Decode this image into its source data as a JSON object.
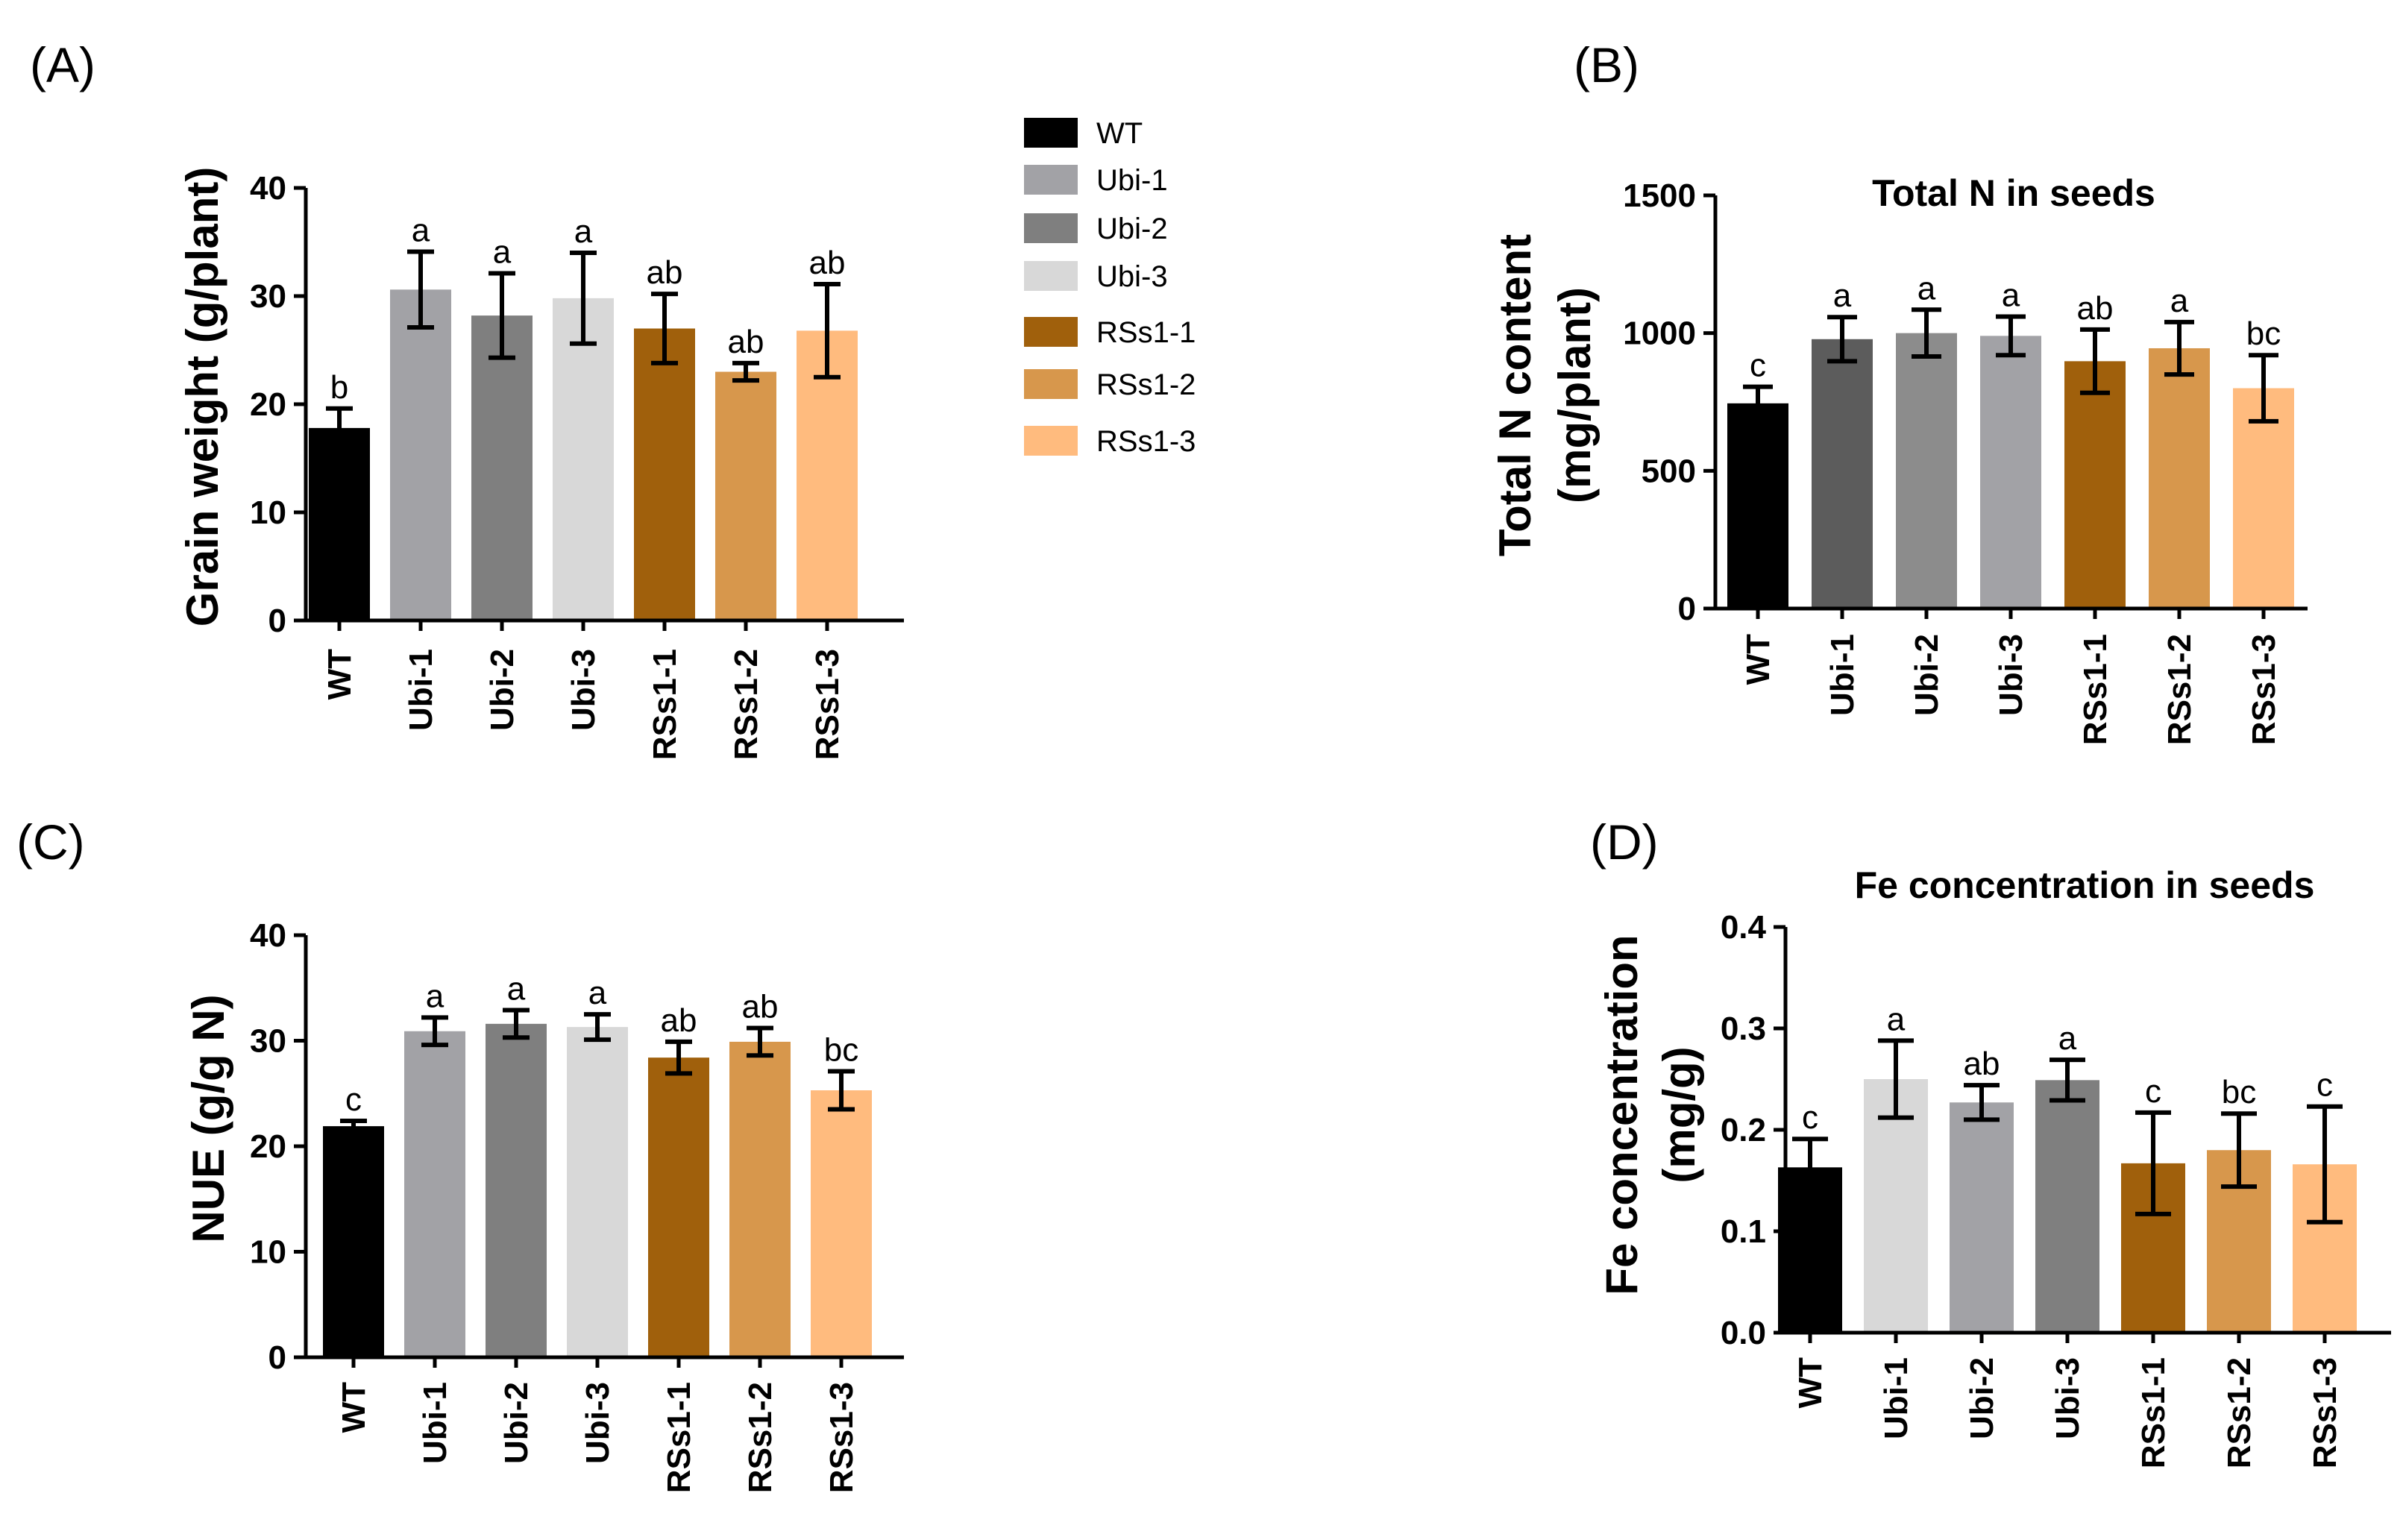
{
  "colors": {
    "WT": "#000000",
    "Ubi-1": "#a2a2a6",
    "Ubi-2": "#7f7f7f",
    "Ubi-3": "#d8d8d8",
    "RSs1-1": "#a0600c",
    "RSs1-2": "#d7974c",
    "RSs1-3": "#ffbb7e",
    "Ubi-dark": "#5c5c5c",
    "Ubi-mid": "#8c8c8c"
  },
  "legend": {
    "items": [
      {
        "label": "WT",
        "color": "#000000"
      },
      {
        "label": "Ubi-1",
        "color": "#a2a2a6"
      },
      {
        "label": "Ubi-2",
        "color": "#7f7f7f"
      },
      {
        "label": "Ubi-3",
        "color": "#d8d8d8"
      },
      {
        "label": "RSs1-1",
        "color": "#a0600c"
      },
      {
        "label": "RSs1-2",
        "color": "#d7974c"
      },
      {
        "label": "RSs1-3",
        "color": "#ffbb7e"
      }
    ]
  },
  "chart_data": [
    {
      "id": "A",
      "panel_label": "(A)",
      "type": "bar",
      "title": "",
      "xlabel": "",
      "ylabel": "Grain weight (g/plant)",
      "ylim": [
        0,
        40
      ],
      "yticks": [
        "0",
        "10",
        "20",
        "30",
        "40"
      ],
      "categories": [
        "WT",
        "Ubi-1",
        "Ubi-2",
        "Ubi-3",
        "RSs1-1",
        "RSs1-2",
        "RSs1-3"
      ],
      "values": [
        17.8,
        30.6,
        28.2,
        29.8,
        27.0,
        23.0,
        26.8
      ],
      "errors": [
        1.8,
        3.5,
        3.9,
        4.2,
        3.2,
        0.8,
        4.3
      ],
      "significance": [
        "b",
        "a",
        "a",
        "a",
        "ab",
        "ab",
        "ab"
      ],
      "colors": [
        "#000000",
        "#a2a2a6",
        "#7f7f7f",
        "#d8d8d8",
        "#a0600c",
        "#d7974c",
        "#ffbb7e"
      ],
      "legend": "right"
    },
    {
      "id": "B",
      "panel_label": "(B)",
      "type": "bar",
      "title": "Total N in seeds",
      "xlabel": "",
      "ylabel": "Total N content",
      "ylabel2": "(mg/plant)",
      "ylim": [
        0,
        1500
      ],
      "yticks": [
        "0",
        "500",
        "1000",
        "1500"
      ],
      "categories": [
        "WT",
        "Ubi-1",
        "Ubi-2",
        "Ubi-3",
        "RSs1-1",
        "RSs1-2",
        "RSs1-3"
      ],
      "values": [
        745,
        978,
        1000,
        990,
        898,
        945,
        800
      ],
      "errors": [
        60,
        80,
        85,
        70,
        115,
        95,
        120
      ],
      "significance": [
        "c",
        "a",
        "a",
        "a",
        "ab",
        "a",
        "bc"
      ],
      "colors": [
        "#000000",
        "#5c5c5c",
        "#8c8c8c",
        "#a2a2a6",
        "#a0600c",
        "#d7974c",
        "#ffbb7e"
      ]
    },
    {
      "id": "C",
      "panel_label": "(C)",
      "type": "bar",
      "title": "",
      "xlabel": "",
      "ylabel": "NUE (g/g N)",
      "ylim": [
        0,
        40
      ],
      "yticks": [
        "0",
        "10",
        "20",
        "30",
        "40"
      ],
      "categories": [
        "WT",
        "Ubi-1",
        "Ubi-2",
        "Ubi-3",
        "RSs1-1",
        "RSs1-2",
        "RSs1-3"
      ],
      "values": [
        21.9,
        30.9,
        31.6,
        31.3,
        28.4,
        29.9,
        25.3
      ],
      "errors": [
        0.5,
        1.3,
        1.3,
        1.2,
        1.5,
        1.3,
        1.8
      ],
      "significance": [
        "c",
        "a",
        "a",
        "a",
        "ab",
        "ab",
        "bc"
      ],
      "colors": [
        "#000000",
        "#a2a2a6",
        "#7f7f7f",
        "#d8d8d8",
        "#a0600c",
        "#d7974c",
        "#ffbb7e"
      ]
    },
    {
      "id": "D",
      "panel_label": "(D)",
      "type": "bar",
      "title": "Fe concentration in seeds",
      "xlabel": "",
      "ylabel": "Fe concentration",
      "ylabel2": "(mg/g)",
      "ylim": [
        0,
        0.4
      ],
      "yticks": [
        "0.0",
        "0.1",
        "0.2",
        "0.3",
        "0.4"
      ],
      "categories": [
        "WT",
        "Ubi-1",
        "Ubi-2",
        "Ubi-3",
        "RSs1-1",
        "RSs1-2",
        "RSs1-3"
      ],
      "values": [
        0.163,
        0.25,
        0.227,
        0.249,
        0.167,
        0.18,
        0.166
      ],
      "errors": [
        0.028,
        0.038,
        0.017,
        0.02,
        0.05,
        0.036,
        0.057
      ],
      "significance": [
        "c",
        "a",
        "ab",
        "a",
        "c",
        "bc",
        "c"
      ],
      "colors": [
        "#000000",
        "#d8d8d8",
        "#a2a2a6",
        "#7f7f7f",
        "#a0600c",
        "#d7974c",
        "#ffbb7e"
      ]
    }
  ]
}
